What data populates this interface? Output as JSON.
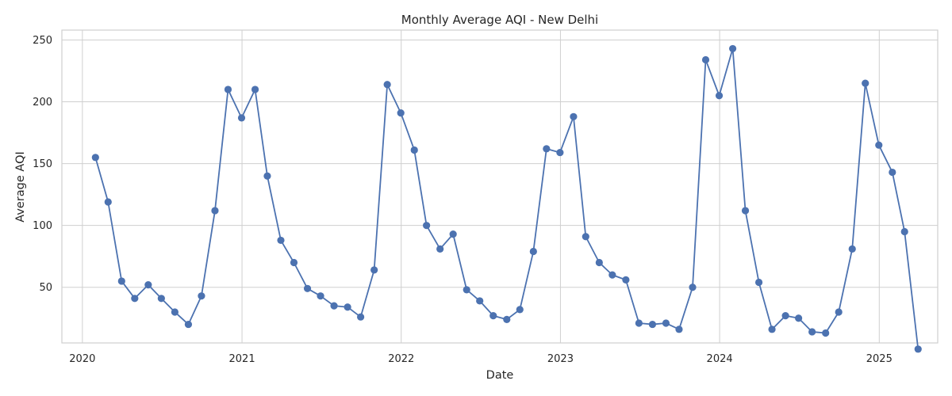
{
  "chart_data": {
    "type": "line",
    "title": "Monthly Average AQI - New Delhi",
    "xlabel": "Date",
    "ylabel": "Average AQI",
    "x_ticks": [
      "2020",
      "2021",
      "2022",
      "2023",
      "2024",
      "2025"
    ],
    "y_ticks": [
      50,
      100,
      150,
      200,
      250
    ],
    "xlim": [
      "2019-11-15",
      "2025-05-15"
    ],
    "ylim": [
      5,
      258
    ],
    "grid": true,
    "color": "#4c72b0",
    "series": [
      {
        "x": [
          "2020-01-31",
          "2020-02-29",
          "2020-03-31",
          "2020-04-30",
          "2020-05-31",
          "2020-06-30",
          "2020-07-31",
          "2020-08-31",
          "2020-09-30",
          "2020-10-31",
          "2020-11-30",
          "2020-12-31",
          "2021-01-31",
          "2021-02-28",
          "2021-03-31",
          "2021-04-30",
          "2021-05-31",
          "2021-06-30",
          "2021-07-31",
          "2021-08-31",
          "2021-09-30",
          "2021-10-31",
          "2021-11-30",
          "2021-12-31",
          "2022-01-31",
          "2022-02-28",
          "2022-03-31",
          "2022-04-30",
          "2022-05-31",
          "2022-06-30",
          "2022-07-31",
          "2022-08-31",
          "2022-09-30",
          "2022-10-31",
          "2022-11-30",
          "2022-12-31",
          "2023-01-31",
          "2023-02-28",
          "2023-03-31",
          "2023-04-30",
          "2023-05-31",
          "2023-06-30",
          "2023-07-31",
          "2023-08-31",
          "2023-09-30",
          "2023-10-31",
          "2023-11-30",
          "2023-12-31",
          "2024-01-31",
          "2024-02-29",
          "2024-03-31",
          "2024-04-30",
          "2024-05-31",
          "2024-06-30",
          "2024-07-31",
          "2024-08-31",
          "2024-09-30",
          "2024-10-31",
          "2024-11-30",
          "2024-12-31",
          "2025-01-31",
          "2025-02-28",
          "2025-03-31"
        ],
        "y": [
          155,
          119,
          55,
          41,
          52,
          41,
          30,
          20,
          43,
          112,
          210,
          187,
          210,
          140,
          88,
          70,
          49,
          43,
          35,
          34,
          26,
          64,
          214,
          191,
          161,
          100,
          81,
          93,
          48,
          39,
          27,
          24,
          32,
          79,
          162,
          159,
          188,
          91,
          70,
          60,
          56,
          21,
          20,
          21,
          16,
          50,
          234,
          205,
          243,
          112,
          54,
          16,
          27,
          25,
          14,
          13,
          30,
          81,
          215,
          165,
          143,
          95,
          0
        ]
      }
    ]
  }
}
